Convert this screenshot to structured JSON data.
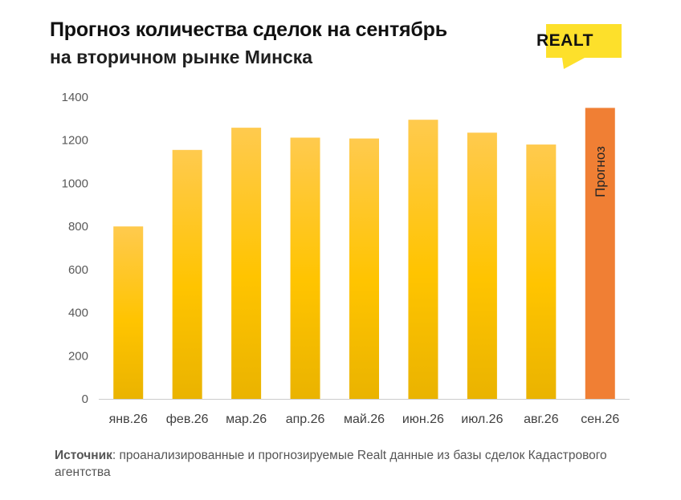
{
  "header": {
    "title": "Прогноз количества сделок на сентябрь",
    "subtitle": "на вторичном рынке Минска"
  },
  "logo": {
    "text": "REALT",
    "accent_color": "#fde02b",
    "text_color": "#111111"
  },
  "source": {
    "label": "Источник",
    "text": ": проанализированные и прогнозируемые Realt данные из базы сделок Кадастрового агентства"
  },
  "chart_data": {
    "type": "bar",
    "categories": [
      "янв.26",
      "фев.26",
      "мар.26",
      "апр.26",
      "май.26",
      "июн.26",
      "июл.26",
      "авг.26",
      "сен.26"
    ],
    "values": [
      800,
      1155,
      1258,
      1212,
      1208,
      1295,
      1235,
      1180,
      1350
    ],
    "ylim": [
      0,
      1400
    ],
    "yticks": [
      0,
      200,
      400,
      600,
      800,
      1000,
      1200,
      1400
    ],
    "grid": false,
    "colors": {
      "actual": "#ffc413",
      "forecast": "#f07f34"
    },
    "annotations": [
      {
        "category": "сен.26",
        "text": "Прогноз"
      }
    ]
  }
}
